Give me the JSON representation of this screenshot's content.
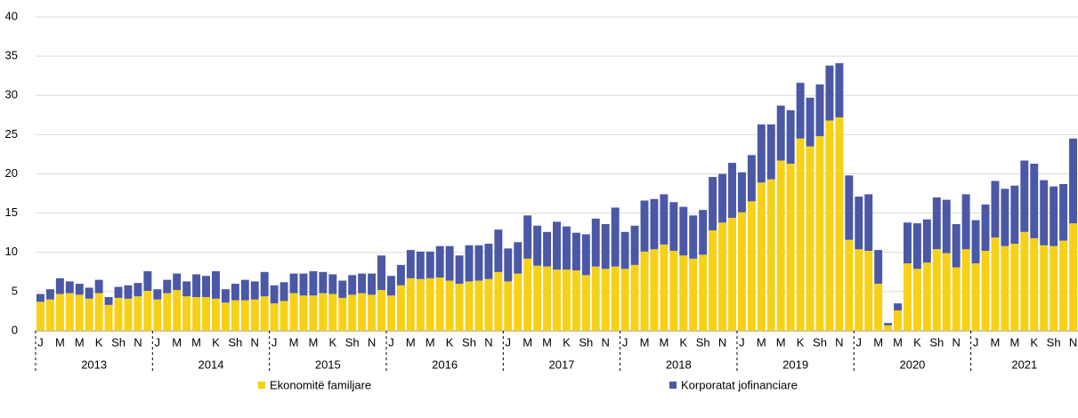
{
  "chart_data": {
    "type": "stacked_bar",
    "categories": [
      "J",
      null,
      "M",
      null,
      "M",
      null,
      "K",
      null,
      "Sh",
      null,
      "N",
      null,
      "J",
      null,
      "M",
      null,
      "M",
      null,
      "K",
      null,
      "Sh",
      null,
      "N",
      null,
      "J",
      null,
      "M",
      null,
      "M",
      null,
      "K",
      null,
      "Sh",
      null,
      "N",
      null,
      "J",
      null,
      "M",
      null,
      "M",
      null,
      "K",
      null,
      "Sh",
      null,
      "N",
      null,
      "J",
      null,
      "M",
      null,
      "M",
      null,
      "K",
      null,
      "Sh",
      null,
      "N",
      null,
      "J",
      null,
      "M",
      null,
      "M",
      null,
      "K",
      null,
      "Sh",
      null,
      "N",
      null,
      "J",
      null,
      "M",
      null,
      "M",
      null,
      "K",
      null,
      "Sh",
      null,
      "N",
      null,
      "J",
      null,
      "M",
      null,
      "M",
      null,
      "K",
      null,
      "Sh",
      null,
      "N",
      null,
      "J",
      null,
      "M",
      null,
      "M",
      null,
      "K",
      null,
      "Sh",
      null,
      "N"
    ],
    "years": [
      "2013",
      "2014",
      "2015",
      "2016",
      "2017",
      "2018",
      "2019",
      "2020",
      "2021"
    ],
    "series": [
      {
        "name": "Ekonomitë familjare",
        "color": "#f7d117",
        "values": [
          3.7,
          4.0,
          4.7,
          4.8,
          4.6,
          4.1,
          4.8,
          3.3,
          4.2,
          4.1,
          4.4,
          5.1,
          4.0,
          4.8,
          5.2,
          4.4,
          4.3,
          4.3,
          4.1,
          3.6,
          3.9,
          3.9,
          4.0,
          4.4,
          3.5,
          3.8,
          4.8,
          4.5,
          4.5,
          4.8,
          4.7,
          4.2,
          4.6,
          4.8,
          4.6,
          5.2,
          4.5,
          5.8,
          6.7,
          6.6,
          6.7,
          6.8,
          6.4,
          6.0,
          6.3,
          6.4,
          6.6,
          7.5,
          6.3,
          7.3,
          9.2,
          8.3,
          8.2,
          7.8,
          7.8,
          7.7,
          7.1,
          8.2,
          7.9,
          8.2,
          7.9,
          8.4,
          10.1,
          10.4,
          11.0,
          10.2,
          9.6,
          9.2,
          9.7,
          12.8,
          13.8,
          14.4,
          15.1,
          16.5,
          18.9,
          19.3,
          21.7,
          21.3,
          24.5,
          23.5,
          24.8,
          26.8,
          27.2,
          11.6,
          10.4,
          10.2,
          6.0,
          0.7,
          2.6,
          8.6,
          7.9,
          8.7,
          10.4,
          9.9,
          8.1,
          10.4,
          8.6,
          10.2,
          11.9,
          10.8,
          11.1,
          12.6,
          11.8,
          10.9,
          10.8,
          11.5,
          13.7
        ]
      },
      {
        "name": "Korporatat jofinanciare",
        "color": "#4a58a6",
        "values": [
          1.0,
          1.3,
          2.0,
          1.5,
          1.4,
          1.4,
          1.7,
          1.0,
          1.4,
          1.7,
          1.7,
          2.5,
          1.3,
          1.7,
          2.1,
          1.9,
          2.9,
          2.7,
          3.5,
          1.7,
          2.1,
          2.6,
          2.3,
          3.1,
          2.3,
          2.4,
          2.5,
          2.8,
          3.1,
          2.7,
          2.5,
          2.2,
          2.5,
          2.5,
          2.7,
          4.4,
          2.5,
          2.6,
          3.6,
          3.5,
          3.4,
          4.0,
          4.4,
          3.6,
          4.6,
          4.5,
          4.5,
          5.4,
          4.2,
          4.0,
          5.5,
          5.1,
          4.4,
          6.1,
          5.5,
          4.8,
          5.2,
          6.1,
          5.7,
          7.5,
          4.7,
          5.0,
          6.5,
          6.4,
          6.4,
          6.2,
          6.2,
          5.5,
          5.7,
          6.8,
          6.2,
          7.0,
          5.1,
          5.9,
          7.4,
          7.0,
          7.0,
          6.8,
          7.1,
          6.2,
          6.6,
          7.0,
          6.9,
          8.2,
          6.7,
          7.2,
          4.3,
          0.3,
          0.9,
          5.2,
          5.8,
          5.5,
          6.6,
          6.8,
          5.5,
          7.0,
          5.5,
          5.9,
          7.2,
          7.3,
          7.4,
          9.1,
          9.5,
          8.3,
          7.6,
          7.2,
          10.8
        ]
      }
    ],
    "ylim": [
      0,
      40
    ],
    "yticks": [
      0,
      5,
      10,
      15,
      20,
      25,
      30,
      35,
      40
    ],
    "grid": true,
    "legend": "bottom"
  }
}
